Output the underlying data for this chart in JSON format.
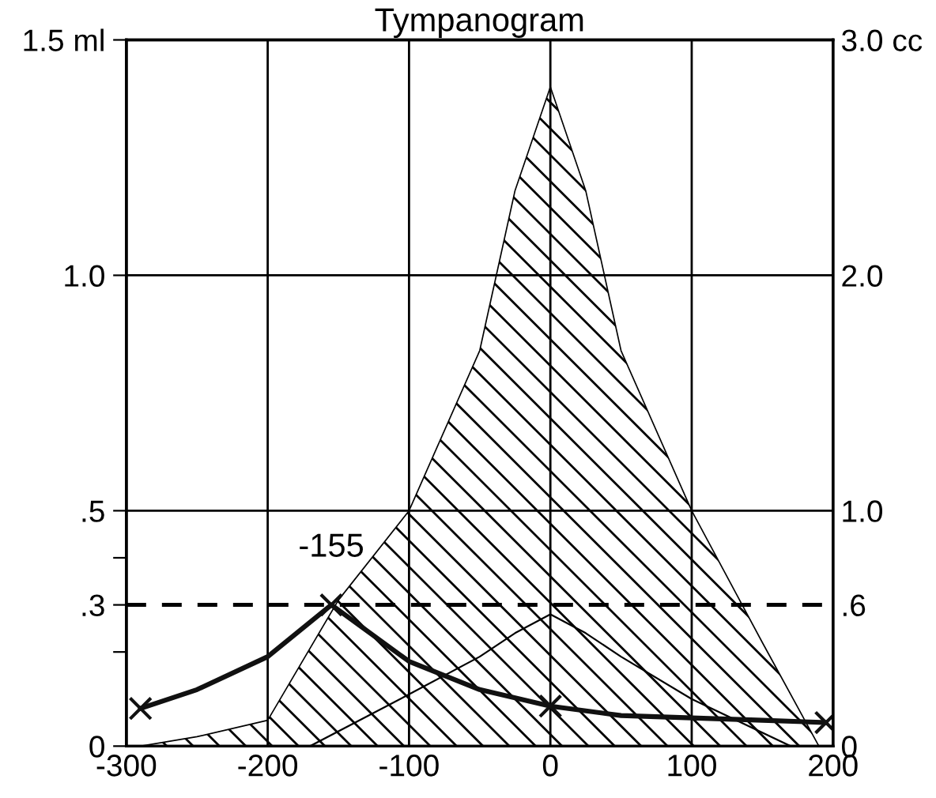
{
  "chart_data": {
    "type": "line",
    "title": "Tympanogram",
    "series": [
      {
        "type": "area",
        "color": "#000000",
        "x": [
          -290,
          -250,
          -200,
          -150,
          -100,
          -50,
          -25,
          0,
          25,
          50,
          100,
          150,
          190
        ],
        "values": [
          0,
          0.02,
          0.055,
          0.31,
          0.5,
          0.84,
          1.18,
          1.4,
          1.18,
          0.84,
          0.5,
          0.22,
          0
        ]
      },
      {
        "type": "line",
        "color": "#000000",
        "x": [
          -170,
          -100,
          -50,
          -25,
          0,
          25,
          50,
          100,
          170
        ],
        "values": [
          0,
          0.11,
          0.19,
          0.24,
          0.28,
          0.24,
          0.19,
          0.1,
          0
        ]
      },
      {
        "color": "#111111",
        "x": [
          -290,
          -250,
          -200,
          -155,
          -100,
          -50,
          0,
          50,
          100,
          150,
          195
        ],
        "values": [
          0.08,
          0.12,
          0.19,
          0.3,
          0.18,
          0.12,
          0.085,
          0.065,
          0.06,
          0.055,
          0.05
        ]
      },
      {
        "type": "scatter",
        "color": "#111111",
        "marker": "cross",
        "x": [
          -290,
          -155,
          0,
          195
        ],
        "values": [
          0.08,
          0.3,
          0.085,
          0.05
        ]
      }
    ],
    "xlim": [
      -300,
      200
    ],
    "xticks": [
      -300,
      -200,
      -100,
      0,
      100,
      200
    ],
    "ylim": [
      0,
      1.5
    ],
    "yticks": [
      0,
      {
        "value": 0.2,
        "label": null
      },
      {
        "value": 0.3,
        "label": ".3"
      },
      {
        "value": 0.4,
        "label": null
      },
      {
        "value": 0.5,
        "label": ".5"
      },
      {
        "value": 1.0,
        "label": "1.0"
      },
      {
        "value": 1.5,
        "label": "1.5 ml"
      }
    ],
    "y2lim": [
      0,
      3
    ],
    "y2ticks": [
      0,
      {
        "value": 0.6,
        "label": ".6"
      },
      {
        "value": 1.0,
        "label": "1.0"
      },
      {
        "value": 2.0,
        "label": "2.0"
      },
      {
        "value": 3.0,
        "label": "3.0 cc"
      }
    ],
    "grid": "x",
    "ref_lines": [
      {
        "axis": "y",
        "value": 0.3,
        "line_style": "dashed",
        "color": "#000000"
      },
      {
        "axis": "y",
        "value": 0.5,
        "color": "#000000"
      },
      {
        "axis": "y",
        "value": 1.0,
        "color": "#000000"
      }
    ],
    "annotations": [
      {
        "text": "-155",
        "x": -155,
        "y": 0.3
      }
    ]
  }
}
